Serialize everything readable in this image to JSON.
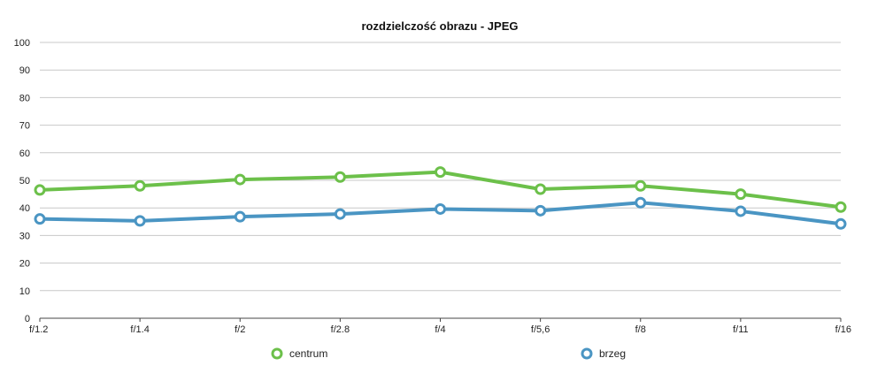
{
  "chart_data": {
    "type": "line",
    "title": "rozdzielczość obrazu - JPEG",
    "xlabel": "",
    "ylabel": "",
    "categories": [
      "f/1.2",
      "f/1.4",
      "f/2",
      "f/2.8",
      "f/4",
      "f/5,6",
      "f/8",
      "f/11",
      "f/16"
    ],
    "ylim": [
      0,
      100
    ],
    "yticks": [
      "0",
      "10",
      "20",
      "30",
      "40",
      "50",
      "60",
      "70",
      "80",
      "90",
      "100"
    ],
    "grid": true,
    "legend_position": "bottom",
    "series": [
      {
        "name": "centrum",
        "color": "#6cc04a",
        "values": [
          46.5,
          48,
          50.3,
          51.2,
          53,
          46.8,
          48,
          45,
          40.3
        ]
      },
      {
        "name": "brzeg",
        "color": "#4a95c3",
        "values": [
          36,
          35.3,
          36.8,
          37.8,
          39.6,
          39,
          41.9,
          38.8,
          34.2
        ]
      }
    ]
  }
}
